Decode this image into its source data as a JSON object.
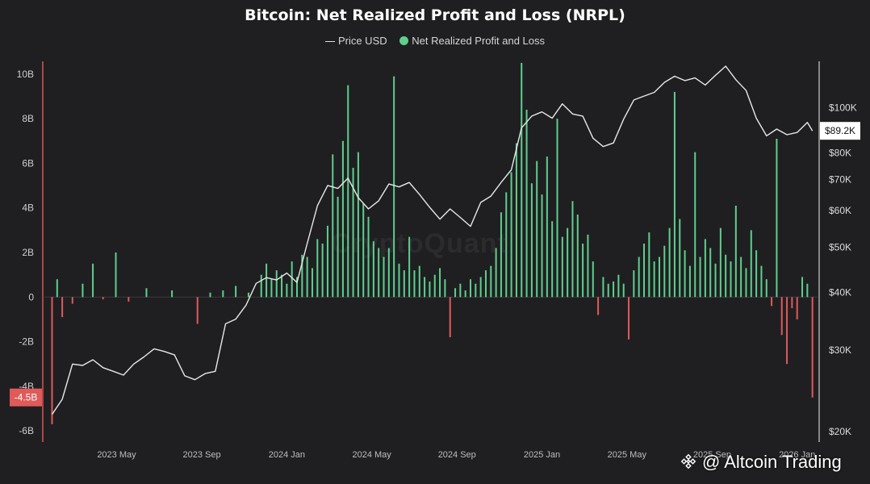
{
  "chart_data": {
    "type": "bar",
    "title": "Bitcoin: Net Realized Profit and Loss (NRPL)",
    "legend": [
      "Price USD",
      "Net Realized Profit and Loss"
    ],
    "legend_position": "top-center",
    "grid": false,
    "watermark": "CryptoQuant",
    "left_axis": {
      "ticks": [
        "10B",
        "8B",
        "6B",
        "4B",
        "2B",
        "0",
        "-2B",
        "-4B",
        "-6B"
      ],
      "ylim": [
        -6.5,
        10.5
      ],
      "unit": "billion USD"
    },
    "right_axis": {
      "scale": "log",
      "ticks": [
        "$100K",
        "$80K",
        "$70K",
        "$60K",
        "$50K",
        "$40K",
        "$30K",
        "$20K"
      ],
      "ylim": [
        19000,
        125000
      ]
    },
    "x_ticks": [
      "2023 May",
      "2023 Sep",
      "2024 Jan",
      "2024 May",
      "2024 Sep",
      "2025 Jan",
      "2025 May",
      "2025 Sep",
      "2026 Jan"
    ],
    "badges": {
      "left": "-4.5B",
      "right": "$89.2K"
    },
    "colors": {
      "positive": "#5fcf8c",
      "negative": "#e05a5a",
      "price_line": "#e8e8e8",
      "left_axis_line": "#d9534f",
      "right_axis_line": "#cfcfcf",
      "badge_left": "#e05a5a",
      "badge_right": "#ffffff"
    },
    "series": [
      {
        "name": "Net Realized Profit and Loss",
        "unit": "billion USD",
        "t": [
          2023.08,
          2023.1,
          2023.12,
          2023.16,
          2023.2,
          2023.24,
          2023.28,
          2023.33,
          2023.38,
          2023.45,
          2023.55,
          2023.65,
          2023.7,
          2023.75,
          2023.8,
          2023.85,
          2023.9,
          2023.92,
          2023.94,
          2023.96,
          2023.98,
          2024.0,
          2024.02,
          2024.04,
          2024.06,
          2024.08,
          2024.1,
          2024.12,
          2024.14,
          2024.16,
          2024.18,
          2024.2,
          2024.22,
          2024.24,
          2024.26,
          2024.28,
          2024.3,
          2024.32,
          2024.34,
          2024.36,
          2024.38,
          2024.4,
          2024.42,
          2024.44,
          2024.46,
          2024.48,
          2024.5,
          2024.52,
          2024.54,
          2024.56,
          2024.58,
          2024.6,
          2024.62,
          2024.64,
          2024.66,
          2024.68,
          2024.7,
          2024.72,
          2024.74,
          2024.76,
          2024.78,
          2024.8,
          2024.82,
          2024.84,
          2024.86,
          2024.88,
          2024.9,
          2024.92,
          2024.94,
          2024.96,
          2024.98,
          2025.0,
          2025.02,
          2025.04,
          2025.06,
          2025.08,
          2025.1,
          2025.12,
          2025.14,
          2025.16,
          2025.18,
          2025.2,
          2025.22,
          2025.24,
          2025.26,
          2025.28,
          2025.3,
          2025.32,
          2025.34,
          2025.36,
          2025.38,
          2025.4,
          2025.42,
          2025.44,
          2025.46,
          2025.48,
          2025.5,
          2025.52,
          2025.54,
          2025.56,
          2025.58,
          2025.6,
          2025.62,
          2025.64,
          2025.66,
          2025.68,
          2025.7,
          2025.72,
          2025.74,
          2025.76,
          2025.78,
          2025.8,
          2025.82,
          2025.84,
          2025.86,
          2025.88,
          2025.9,
          2025.92,
          2025.94,
          2025.96,
          2025.98,
          2026.0,
          2026.02,
          2026.04,
          2026.06
        ],
        "values": [
          -5.7,
          0.8,
          -0.9,
          -0.3,
          0.6,
          1.5,
          -0.1,
          2.0,
          -0.2,
          0.4,
          0.3,
          -1.2,
          0.2,
          0.3,
          0.5,
          0.2,
          1.0,
          1.5,
          0.8,
          1.2,
          1.0,
          0.6,
          1.6,
          0.9,
          1.9,
          1.8,
          1.3,
          2.6,
          2.4,
          3.2,
          6.4,
          4.5,
          7.0,
          9.5,
          5.8,
          6.5,
          4.2,
          3.6,
          2.5,
          2.2,
          1.8,
          2.2,
          9.9,
          1.5,
          1.2,
          2.7,
          1.2,
          1.4,
          0.9,
          0.7,
          1.0,
          1.3,
          0.8,
          -1.8,
          0.4,
          0.6,
          0.3,
          0.8,
          0.6,
          0.9,
          1.2,
          1.4,
          2.2,
          3.8,
          4.7,
          5.6,
          6.9,
          10.5,
          8.4,
          5.1,
          6.1,
          4.6,
          6.3,
          3.4,
          8.0,
          2.7,
          3.1,
          4.3,
          3.7,
          2.4,
          2.8,
          1.6,
          -0.8,
          0.9,
          0.6,
          0.7,
          1.0,
          0.6,
          -1.9,
          1.2,
          1.8,
          2.4,
          2.9,
          1.6,
          1.8,
          2.3,
          3.1,
          9.2,
          3.5,
          2.1,
          1.4,
          6.5,
          1.8,
          2.6,
          2.2,
          1.5,
          3.1,
          1.9,
          1.6,
          4.1,
          1.8,
          1.3,
          3.0,
          2.1,
          1.4,
          0.8,
          -0.4,
          7.1,
          -1.7,
          -3.0,
          -0.5,
          -1.0,
          0.9,
          0.6,
          -4.5
        ]
      },
      {
        "name": "Price USD",
        "unit": "USD",
        "t": [
          2023.08,
          2023.12,
          2023.16,
          2023.2,
          2023.24,
          2023.28,
          2023.32,
          2023.36,
          2023.4,
          2023.44,
          2023.48,
          2023.52,
          2023.56,
          2023.6,
          2023.64,
          2023.68,
          2023.72,
          2023.76,
          2023.8,
          2023.84,
          2023.88,
          2023.92,
          2023.96,
          2024.0,
          2024.04,
          2024.08,
          2024.12,
          2024.16,
          2024.2,
          2024.24,
          2024.28,
          2024.32,
          2024.36,
          2024.4,
          2024.44,
          2024.48,
          2024.52,
          2024.56,
          2024.6,
          2024.64,
          2024.68,
          2024.72,
          2024.76,
          2024.8,
          2024.84,
          2024.88,
          2024.92,
          2024.96,
          2025.0,
          2025.04,
          2025.08,
          2025.12,
          2025.16,
          2025.2,
          2025.24,
          2025.28,
          2025.32,
          2025.36,
          2025.4,
          2025.44,
          2025.48,
          2025.52,
          2025.56,
          2025.6,
          2025.64,
          2025.68,
          2025.72,
          2025.76,
          2025.8,
          2025.84,
          2025.88,
          2025.92,
          2025.96,
          2026.0,
          2026.04,
          2026.06
        ],
        "values": [
          21800,
          23500,
          28000,
          27800,
          28600,
          27500,
          27000,
          26500,
          28000,
          29000,
          30200,
          29800,
          29300,
          26400,
          25900,
          26700,
          27000,
          34200,
          35000,
          37500,
          41800,
          43000,
          42500,
          44000,
          42000,
          51000,
          61500,
          68000,
          67000,
          70500,
          64000,
          60500,
          63000,
          68500,
          67500,
          69000,
          65000,
          61000,
          57500,
          60500,
          58000,
          55500,
          62500,
          64500,
          69000,
          73500,
          90500,
          96000,
          98000,
          95000,
          102000,
          97000,
          96000,
          86000,
          82500,
          84000,
          94500,
          104000,
          106000,
          108000,
          113500,
          117000,
          114500,
          116000,
          112000,
          117500,
          123000,
          115000,
          109000,
          95000,
          87000,
          90000,
          87500,
          88500,
          93000,
          89200
        ]
      }
    ]
  },
  "attribution": "@ Altcoin Trading"
}
